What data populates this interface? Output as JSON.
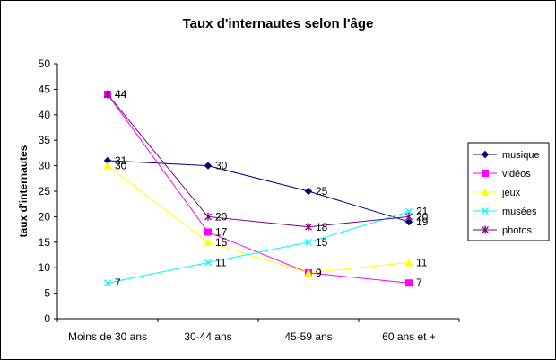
{
  "chart_data": {
    "type": "line",
    "title": "Taux d'internautes selon l'âge",
    "xlabel": "",
    "ylabel": "taux d'internautes",
    "categories": [
      "Moins de 30 ans",
      "30-44 ans",
      "45-59 ans",
      "60 ans et +"
    ],
    "ylim": [
      0,
      50
    ],
    "yticks": [
      "0",
      "5",
      "10",
      "15",
      "20",
      "25",
      "30",
      "35",
      "40",
      "45",
      "50"
    ],
    "grid": false,
    "legend_position": "right",
    "series": [
      {
        "name": "musique",
        "values": [
          31,
          30,
          25,
          19
        ],
        "color": "#000080",
        "marker": "diamond"
      },
      {
        "name": "vidéos",
        "values": [
          44,
          17,
          9,
          7
        ],
        "color": "#ff00ff",
        "marker": "square"
      },
      {
        "name": "jeux",
        "values": [
          30,
          15,
          9,
          11
        ],
        "color": "#ffff00",
        "marker": "triangle"
      },
      {
        "name": "musées",
        "values": [
          7,
          11,
          15,
          21
        ],
        "color": "#00ffff",
        "marker": "x"
      },
      {
        "name": "photos",
        "values": [
          44,
          20,
          18,
          20
        ],
        "color": "#800080",
        "marker": "star"
      }
    ]
  }
}
